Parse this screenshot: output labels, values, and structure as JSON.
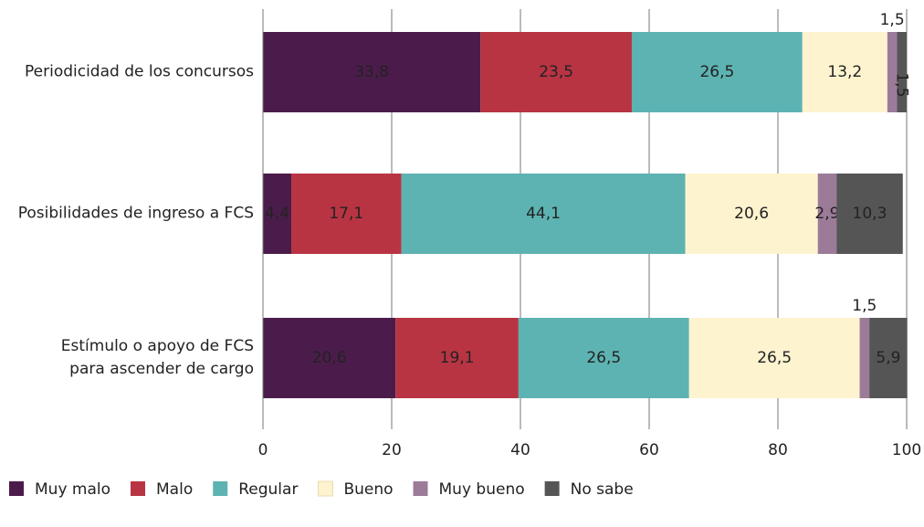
{
  "chart_data": {
    "type": "stacked-bar-horizontal",
    "categories": [
      "Periodicidad de los concursos",
      "Posibilidades de ingreso a FCS",
      "Estímulo o apoyo de FCS\npara ascender de cargo"
    ],
    "series": [
      {
        "name": "Muy malo",
        "color": "#4b1c4b",
        "text_color": "#fdf3cf",
        "values": [
          33.8,
          4.4,
          20.6
        ],
        "value_labels": [
          "33,8",
          "4,4",
          "20,6"
        ]
      },
      {
        "name": "Malo",
        "color": "#b83443",
        "text_color": "#fdf3cf",
        "values": [
          23.5,
          17.1,
          19.1
        ],
        "value_labels": [
          "23,5",
          "17,1",
          "19,1"
        ]
      },
      {
        "name": "Regular",
        "color": "#5db3b1",
        "text_color": "#fdf3cf",
        "values": [
          26.5,
          44.1,
          26.5
        ],
        "value_labels": [
          "26,5",
          "44,1",
          "26,5"
        ]
      },
      {
        "name": "Bueno",
        "color": "#fef3cf",
        "text_color": "#333333",
        "values": [
          13.2,
          20.6,
          26.5
        ],
        "value_labels": [
          "13,2",
          "20,6",
          "26,5"
        ]
      },
      {
        "name": "Muy bueno",
        "color": "#9c7b99",
        "text_color": "#fdf3cf",
        "values": [
          1.5,
          2.9,
          1.5
        ],
        "value_labels": [
          "1,5",
          "2,9",
          "1,5"
        ]
      },
      {
        "name": "No sabe",
        "color": "#555555",
        "text_color": "#fdf3cf",
        "values": [
          1.5,
          10.3,
          5.9
        ],
        "value_labels": [
          "1,5",
          "10,3",
          "5,9"
        ]
      }
    ],
    "xlim": [
      0,
      100
    ],
    "xticks": [
      0,
      20,
      40,
      60,
      80,
      100
    ],
    "grid": true,
    "legend": "bottom"
  }
}
